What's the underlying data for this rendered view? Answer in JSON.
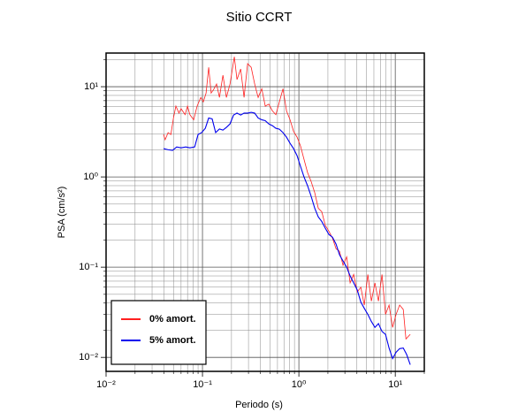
{
  "chart_data": {
    "type": "line",
    "title": "Sitio CCRT",
    "xlabel": "Periodo (s)",
    "ylabel": "PSA (cm/s²)",
    "xscale": "log",
    "yscale": "log",
    "grid": true,
    "minor_grid": true,
    "legend_position": "lower left",
    "xlim": [
      0.01,
      20
    ],
    "ylim": [
      0.007,
      23.6
    ],
    "xticks": [
      {
        "value": 0.01,
        "label": "10⁻²"
      },
      {
        "value": 0.1,
        "label": "10⁻¹"
      },
      {
        "value": 1,
        "label": "10⁰"
      },
      {
        "value": 10,
        "label": "10¹"
      }
    ],
    "yticks": [
      {
        "value": 0.01,
        "label": "10⁻²"
      },
      {
        "value": 0.1,
        "label": "10⁻¹"
      },
      {
        "value": 1,
        "label": "10⁰"
      },
      {
        "value": 10,
        "label": "10¹"
      }
    ],
    "series": [
      {
        "name": "0% amort.",
        "color": "#ff2020",
        "x": [
          0.0395,
          0.041,
          0.044,
          0.047,
          0.05,
          0.053,
          0.057,
          0.06,
          0.066,
          0.07,
          0.074,
          0.081,
          0.088,
          0.096,
          0.102,
          0.109,
          0.116,
          0.123,
          0.132,
          0.14,
          0.15,
          0.163,
          0.177,
          0.193,
          0.214,
          0.228,
          0.249,
          0.27,
          0.294,
          0.32,
          0.348,
          0.378,
          0.412,
          0.448,
          0.488,
          0.531,
          0.577,
          0.628,
          0.684,
          0.744,
          0.81,
          0.881,
          0.958,
          1.04,
          1.13,
          1.23,
          1.34,
          1.46,
          1.59,
          1.73,
          1.88,
          2.05,
          2.23,
          2.43,
          2.64,
          2.87,
          3.13,
          3.4,
          3.7,
          4.03,
          4.39,
          4.77,
          5.19,
          5.65,
          6.15,
          6.69,
          7.28,
          7.92,
          8.62,
          9.38,
          10.2,
          11.1,
          12.1,
          12.9,
          14.3
        ],
        "values": [
          2.95,
          2.58,
          3.1,
          2.95,
          4.5,
          6.1,
          5.1,
          5.7,
          4.9,
          6.1,
          4.9,
          4.3,
          6.1,
          7.6,
          6.8,
          8.5,
          16.4,
          8.5,
          9.5,
          10.7,
          7.6,
          13.4,
          7.6,
          10.7,
          21.5,
          12,
          15.7,
          7.6,
          18,
          16.4,
          10.7,
          7.6,
          9.5,
          6.1,
          6.4,
          5.4,
          4.9,
          6.8,
          9.5,
          5.4,
          4.3,
          3.2,
          2.76,
          2.2,
          1.57,
          1.12,
          0.89,
          0.67,
          0.45,
          0.41,
          0.29,
          0.25,
          0.21,
          0.16,
          0.15,
          0.105,
          0.13,
          0.067,
          0.083,
          0.053,
          0.06,
          0.038,
          0.083,
          0.042,
          0.067,
          0.042,
          0.083,
          0.03,
          0.038,
          0.0215,
          0.03,
          0.038,
          0.034,
          0.016,
          0.018
        ]
      },
      {
        "name": "5% amort.",
        "color": "#0000ee",
        "x": [
          0.0395,
          0.044,
          0.049,
          0.054,
          0.06,
          0.067,
          0.074,
          0.083,
          0.09,
          0.098,
          0.107,
          0.116,
          0.126,
          0.137,
          0.15,
          0.163,
          0.177,
          0.193,
          0.21,
          0.228,
          0.249,
          0.27,
          0.294,
          0.32,
          0.348,
          0.378,
          0.412,
          0.448,
          0.488,
          0.531,
          0.577,
          0.628,
          0.684,
          0.744,
          0.81,
          0.881,
          0.958,
          1.04,
          1.13,
          1.23,
          1.34,
          1.46,
          1.59,
          1.73,
          1.88,
          2.05,
          2.23,
          2.43,
          2.64,
          2.87,
          3.13,
          3.4,
          3.7,
          4.03,
          4.39,
          4.77,
          5.19,
          5.65,
          6.15,
          6.69,
          7.28,
          7.92,
          8.62,
          9.38,
          10.2,
          11.1,
          12.1,
          13.1,
          14.3
        ],
        "values": [
          2.06,
          2.0,
          1.97,
          2.15,
          2.1,
          2.15,
          2.1,
          2.15,
          2.95,
          3.1,
          3.46,
          4.5,
          4.4,
          3.1,
          3.4,
          3.3,
          3.54,
          3.87,
          4.85,
          5.1,
          4.85,
          5.1,
          5.1,
          5.2,
          5.1,
          4.5,
          4.3,
          4.2,
          3.87,
          3.7,
          3.46,
          3.38,
          3.1,
          2.76,
          2.36,
          2.06,
          1.72,
          1.31,
          1.0,
          0.8,
          0.61,
          0.45,
          0.36,
          0.32,
          0.27,
          0.23,
          0.215,
          0.18,
          0.137,
          0.117,
          0.1,
          0.08,
          0.067,
          0.056,
          0.041,
          0.035,
          0.03,
          0.025,
          0.0215,
          0.0237,
          0.0194,
          0.018,
          0.0127,
          0.0097,
          0.0114,
          0.0125,
          0.0127,
          0.0108,
          0.0083
        ]
      }
    ]
  }
}
